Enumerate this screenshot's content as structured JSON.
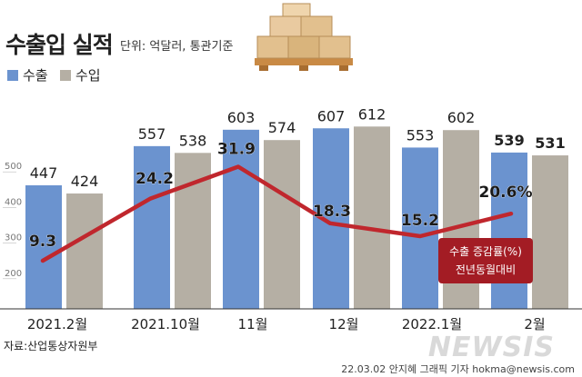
{
  "header": {
    "title": "수출입 실적",
    "unit_note": "단위: 억달러, 통관기준"
  },
  "footer": {
    "source": "자료:산업통상자원부",
    "byline": "22.03.02 안지혜 그래픽 기자 hokma@newsis.com",
    "watermark": "NEWSIS"
  },
  "colors": {
    "export": "#6b93cf",
    "import": "#b5afa4",
    "growth_line": "#c0272d",
    "growth_label_bg": "#a31c24"
  },
  "chart_data": {
    "type": "bar",
    "categories": [
      "2021.2월",
      "2021.10월",
      "11월",
      "12월",
      "2022.1월",
      "2월"
    ],
    "series": [
      {
        "name": "수출",
        "values": [
          447,
          557,
          603,
          607,
          553,
          539
        ]
      },
      {
        "name": "수입",
        "values": [
          424,
          538,
          574,
          612,
          602,
          531
        ]
      }
    ],
    "line_series": {
      "name": "수출 증감률(%) 전년동월대비",
      "values": [
        9.3,
        24.2,
        31.9,
        18.3,
        15.2,
        20.6
      ],
      "labels": [
        "9.3",
        "24.2",
        "31.9",
        "18.3",
        "15.2",
        "20.6%"
      ]
    },
    "y_ticks": [
      200,
      300,
      400,
      500
    ],
    "ylim": [
      100,
      650
    ],
    "emphasized_category": "2월",
    "legend": "top-left"
  }
}
